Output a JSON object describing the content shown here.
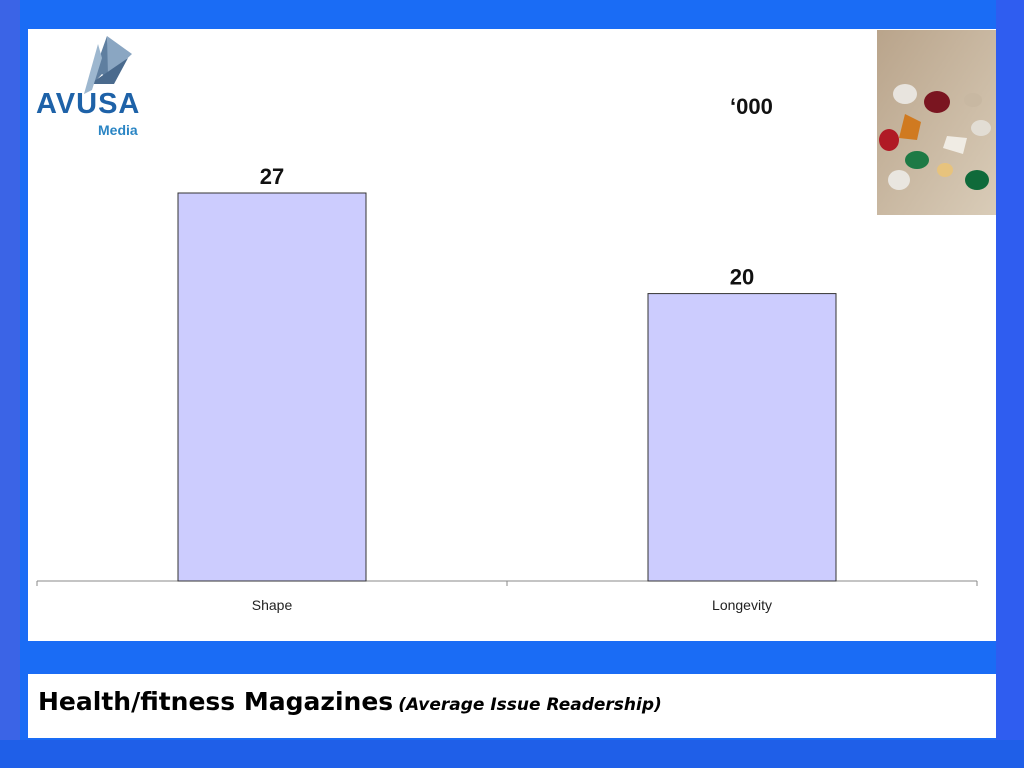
{
  "logo": {
    "word": "AVUSA",
    "sub": "Media"
  },
  "unit_label": "‘000",
  "footer": {
    "title": "Health/fitness Magazines",
    "subtitle": "(Average Issue Readership)"
  },
  "photo": {
    "icon": "gemstones-photo"
  },
  "colors": {
    "bar_fill": "#ccccfe",
    "bar_stroke": "#333333",
    "background": "#1a6cf5"
  },
  "chart_data": {
    "type": "bar",
    "categories": [
      "Shape",
      "Longevity"
    ],
    "values": [
      27,
      20
    ],
    "data_labels": [
      "27",
      "20"
    ],
    "ylim": [
      0,
      27
    ],
    "grid": false,
    "legend": "none"
  }
}
